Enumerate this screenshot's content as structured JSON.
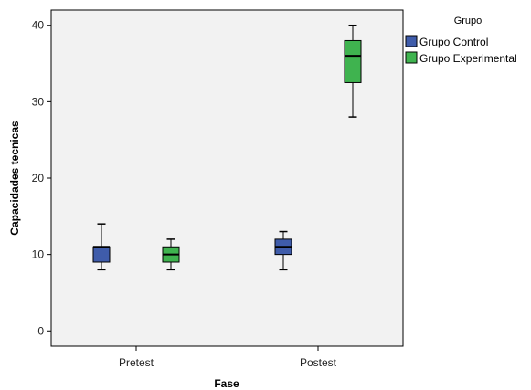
{
  "chart_data": {
    "type": "boxplot",
    "xlabel": "Fase",
    "ylabel": "Capacidades tecnicas",
    "categories": [
      "Pretest",
      "Postest"
    ],
    "yticks": [
      0,
      10,
      20,
      30,
      40
    ],
    "ylim": [
      -2,
      42
    ],
    "grid": false,
    "legend": {
      "title": "Grupo",
      "position": "right"
    },
    "series": [
      {
        "name": "Grupo Control",
        "color": "#3F5CAA",
        "boxes": [
          {
            "min": 8,
            "q1": 9,
            "median": 11,
            "q3": 11,
            "max": 14
          },
          {
            "min": 8,
            "q1": 10,
            "median": 11,
            "q3": 12,
            "max": 13
          }
        ]
      },
      {
        "name": "Grupo Experimental",
        "color": "#3FB34F",
        "boxes": [
          {
            "min": 8,
            "q1": 9,
            "median": 10,
            "q3": 11,
            "max": 12
          },
          {
            "min": 28,
            "q1": 32.5,
            "median": 36,
            "q3": 38,
            "max": 40
          }
        ]
      }
    ]
  }
}
